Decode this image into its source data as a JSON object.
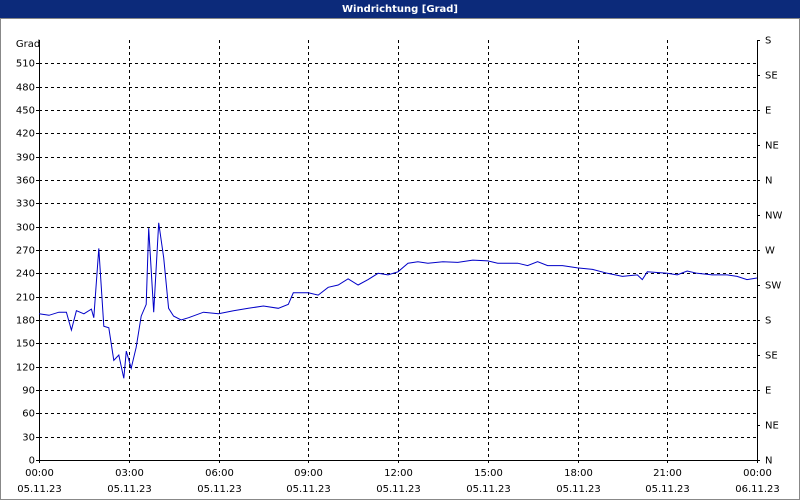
{
  "chart_data": {
    "type": "line",
    "title": "Windrichtung [Grad]",
    "y_label": "Grad",
    "x": [
      0,
      20,
      40,
      55,
      65,
      75,
      90,
      105,
      110,
      120,
      130,
      140,
      150,
      160,
      170,
      175,
      185,
      195,
      205,
      215,
      220,
      230,
      240,
      250,
      260,
      270,
      285,
      300,
      330,
      360,
      390,
      420,
      450,
      480,
      500,
      510,
      540,
      560,
      580,
      600,
      620,
      640,
      660,
      680,
      700,
      720,
      740,
      760,
      780,
      810,
      840,
      870,
      900,
      920,
      960,
      980,
      1000,
      1020,
      1050,
      1080,
      1110,
      1140,
      1170,
      1200,
      1210,
      1220,
      1260,
      1280,
      1300,
      1320,
      1350,
      1380,
      1400,
      1420,
      1440
    ],
    "values": [
      188,
      186,
      190,
      190,
      167,
      192,
      188,
      194,
      183,
      272,
      172,
      170,
      128,
      135,
      105,
      140,
      118,
      145,
      185,
      200,
      298,
      190,
      305,
      260,
      195,
      185,
      180,
      183,
      190,
      188,
      192,
      195,
      198,
      195,
      200,
      215,
      215,
      212,
      222,
      225,
      233,
      225,
      232,
      240,
      238,
      242,
      253,
      255,
      253,
      255,
      254,
      257,
      256,
      253,
      253,
      250,
      255,
      250,
      250,
      247,
      245,
      240,
      236,
      238,
      232,
      242,
      240,
      238,
      243,
      240,
      238,
      238,
      236,
      232,
      234
    ],
    "color": "#0000c8",
    "xlim": [
      0,
      1440
    ],
    "xticks": [
      {
        "value": 0,
        "label": "00:00",
        "date": "05.11.23"
      },
      {
        "value": 180,
        "label": "03:00",
        "date": "05.11.23"
      },
      {
        "value": 360,
        "label": "06:00",
        "date": "05.11.23"
      },
      {
        "value": 540,
        "label": "09:00",
        "date": "05.11.23"
      },
      {
        "value": 720,
        "label": "12:00",
        "date": "05.11.23"
      },
      {
        "value": 900,
        "label": "15:00",
        "date": "05.11.23"
      },
      {
        "value": 1080,
        "label": "18:00",
        "date": "05.11.23"
      },
      {
        "value": 1260,
        "label": "21:00",
        "date": "05.11.23"
      },
      {
        "value": 1440,
        "label": "00:00",
        "date": "06.11.23"
      }
    ],
    "ylim": [
      0,
      540
    ],
    "yticks": [
      0,
      30,
      60,
      90,
      120,
      150,
      180,
      210,
      240,
      270,
      300,
      330,
      360,
      390,
      420,
      450,
      480,
      510
    ],
    "y2lim": [
      0,
      540
    ],
    "y2ticks": [
      {
        "value": 0,
        "label": "N"
      },
      {
        "value": 45,
        "label": "NE"
      },
      {
        "value": 90,
        "label": "E"
      },
      {
        "value": 135,
        "label": "SE"
      },
      {
        "value": 180,
        "label": "S"
      },
      {
        "value": 225,
        "label": "SW"
      },
      {
        "value": 270,
        "label": "W"
      },
      {
        "value": 315,
        "label": "NW"
      },
      {
        "value": 360,
        "label": "N"
      },
      {
        "value": 405,
        "label": "NE"
      },
      {
        "value": 450,
        "label": "E"
      },
      {
        "value": 495,
        "label": "SE"
      },
      {
        "value": 540,
        "label": "S"
      }
    ],
    "grid": true
  }
}
